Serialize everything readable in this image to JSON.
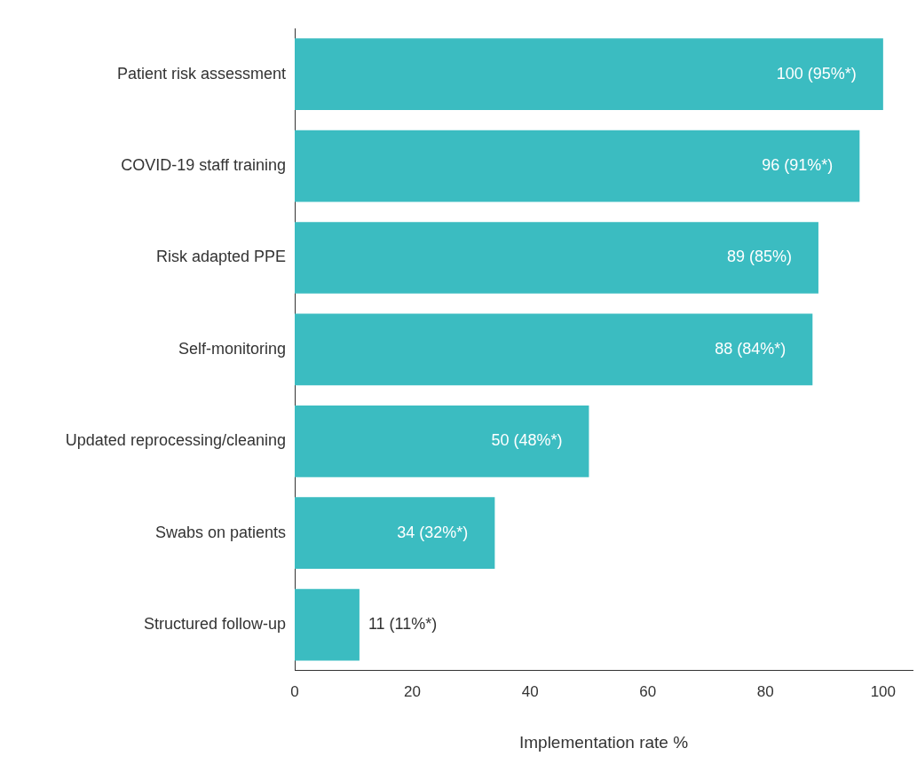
{
  "chart_data": {
    "type": "bar",
    "orientation": "horizontal",
    "xlabel": "Implementation rate %",
    "categories": [
      "Patient risk assessment",
      "COVID-19 staff training",
      "Risk adapted PPE",
      "Self-monitoring",
      "Updated reprocessing/cleaning",
      "Swabs on patients",
      "Structured follow-up"
    ],
    "values": [
      100,
      96,
      89,
      88,
      50,
      34,
      11
    ],
    "value_labels": [
      "100 (95%*)",
      "96 (91%*)",
      "89 (85%)",
      "88 (84%*)",
      "50 (48%*)",
      "34 (32%*)",
      "11 (11%*)"
    ],
    "color": "#3bbcc1",
    "xlim": [
      0,
      105
    ],
    "xticks": [
      0,
      20,
      40,
      60,
      80,
      100
    ],
    "grid": false,
    "legend": false
  }
}
